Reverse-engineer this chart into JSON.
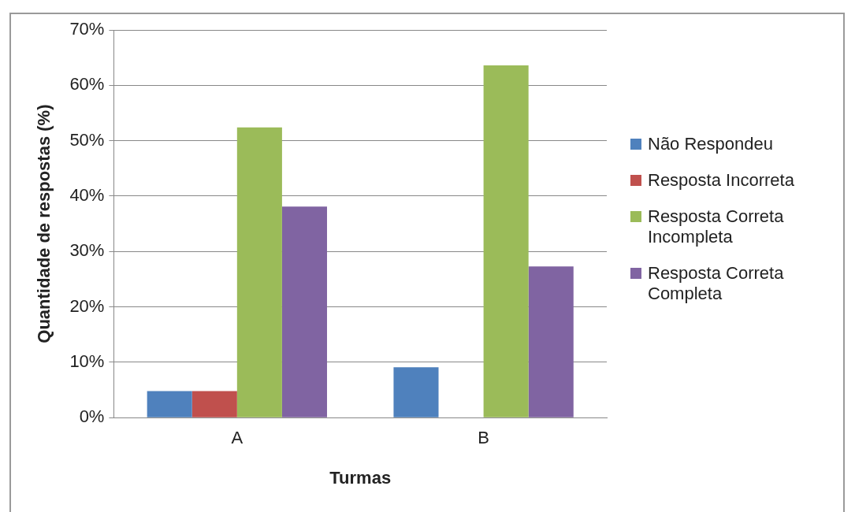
{
  "chart_data": {
    "type": "bar",
    "xlabel": "Turmas",
    "ylabel": "Quantidade de respostas (%)",
    "categories": [
      "A",
      "B"
    ],
    "series": [
      {
        "name": "Não Respondeu",
        "color": "#4f81bd",
        "values": [
          4.8,
          9.1
        ]
      },
      {
        "name": "Resposta Incorreta",
        "color": "#c0504d",
        "values": [
          4.8,
          0
        ]
      },
      {
        "name": "Resposta Correta Incompleta",
        "color": "#9bbb59",
        "values": [
          52.4,
          63.6
        ]
      },
      {
        "name": "Resposta Correta Completa",
        "color": "#8064a2",
        "values": [
          38.1,
          27.3
        ]
      }
    ],
    "ylim": [
      0,
      70
    ],
    "yticks": [
      {
        "value": 0,
        "label": "0%"
      },
      {
        "value": 10,
        "label": "10%"
      },
      {
        "value": 20,
        "label": "20%"
      },
      {
        "value": 30,
        "label": "30%"
      },
      {
        "value": 40,
        "label": "40%"
      },
      {
        "value": 50,
        "label": "50%"
      },
      {
        "value": 60,
        "label": "60%"
      },
      {
        "value": 70,
        "label": "70%"
      }
    ],
    "grid": "y",
    "legend": "right"
  }
}
